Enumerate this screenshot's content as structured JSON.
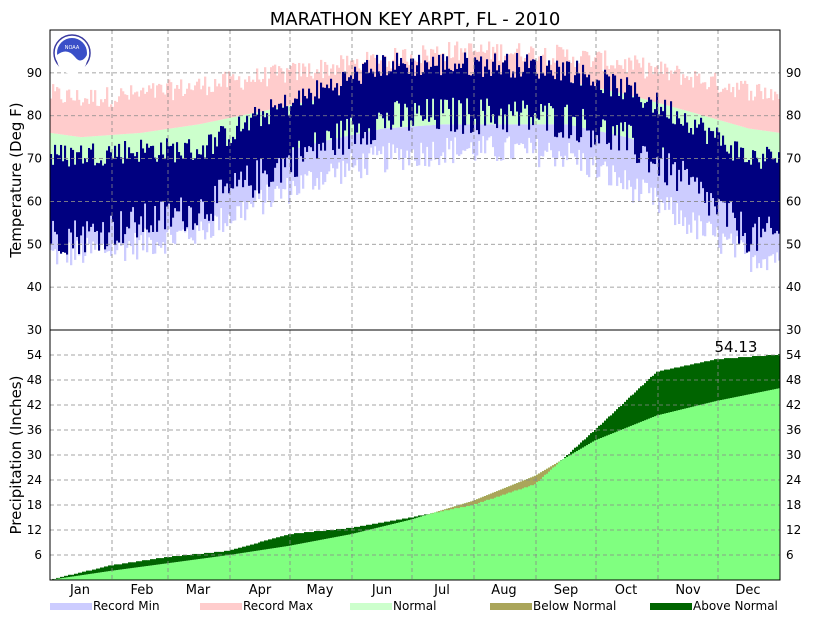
{
  "chart_data": {
    "type": "area",
    "title": "MARATHON KEY ARPT, FL - 2010",
    "x_categories": [
      "Jan",
      "Feb",
      "Mar",
      "Apr",
      "May",
      "Jun",
      "Jul",
      "Aug",
      "Sep",
      "Oct",
      "Nov",
      "Dec"
    ],
    "temperature_panel": {
      "ylabel": "Temperature (Deg F)",
      "ylim": [
        30,
        100
      ],
      "yticks": [
        40,
        50,
        60,
        70,
        80,
        90
      ],
      "grid": true,
      "normal_low_monthly": [
        64,
        64,
        67,
        70,
        74,
        77,
        78,
        78,
        78,
        75,
        70,
        66
      ],
      "normal_high_monthly": [
        75,
        76,
        78,
        81,
        84,
        87,
        89,
        89,
        88,
        85,
        81,
        77
      ],
      "record_min_monthly": [
        48,
        50,
        53,
        60,
        66,
        70,
        72,
        72,
        71,
        64,
        55,
        47
      ],
      "record_max_monthly": [
        84,
        85,
        87,
        89,
        91,
        93,
        95,
        95,
        94,
        92,
        89,
        86
      ],
      "actual_low_monthly": [
        52,
        55,
        58,
        66,
        73,
        79,
        80,
        80,
        79,
        74,
        64,
        52
      ],
      "actual_high_monthly": [
        71,
        72,
        72,
        80,
        86,
        92,
        92,
        92,
        91,
        86,
        79,
        70
      ]
    },
    "precip_panel": {
      "ylabel": "Precipitation (Inches)",
      "ylim": [
        0,
        60
      ],
      "yticks": [
        6,
        12,
        18,
        24,
        30,
        36,
        42,
        48,
        54
      ],
      "right_axis_extra_tick": 30,
      "grid": true,
      "annotation": "54.13",
      "normal_cumulative_month_end": [
        2.2,
        4.0,
        6.0,
        8.2,
        11.0,
        14.5,
        19.0,
        25.0,
        33.5,
        39.5,
        43.0,
        46.0
      ],
      "actual_cumulative_month_end": [
        3.5,
        5.5,
        7.0,
        11.0,
        12.5,
        15.0,
        18.0,
        23.0,
        36.0,
        50.0,
        53.0,
        54.13
      ]
    },
    "legend": [
      {
        "label": "Record Min",
        "color": "#ccccff"
      },
      {
        "label": "Record Max",
        "color": "#ffcccc"
      },
      {
        "label": "Normal",
        "color": "#ccffcc"
      },
      {
        "label": "Below Normal",
        "color": "#aaa55a"
      },
      {
        "label": "Above Normal",
        "color": "#006400"
      }
    ],
    "colors": {
      "actual_temp": "#000080",
      "record_min": "#ccccff",
      "record_max": "#ffcccc",
      "normal": "#ccffcc",
      "precip_normal": "#80ff80",
      "below_normal": "#aaa55a",
      "above_normal": "#006400"
    }
  }
}
